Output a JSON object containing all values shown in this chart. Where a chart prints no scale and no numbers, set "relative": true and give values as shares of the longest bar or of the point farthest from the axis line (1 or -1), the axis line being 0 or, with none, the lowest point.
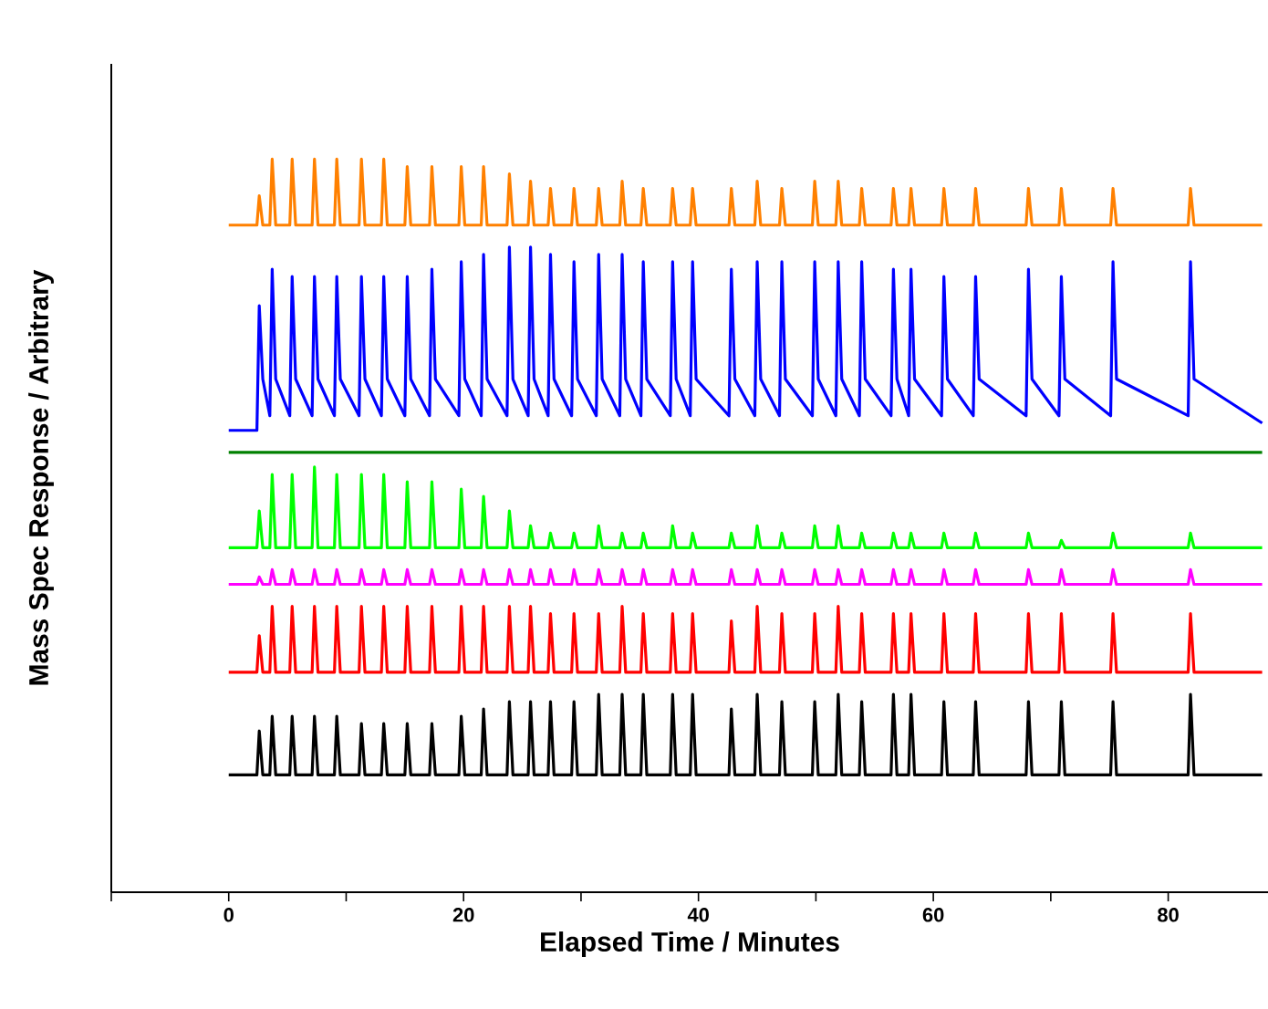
{
  "chart_data": {
    "type": "line",
    "xlabel": "Elapsed Time / Minutes",
    "ylabel": "Mass Spec Response / Arbitrary",
    "relative": true,
    "xlim": [
      -10,
      88.5
    ],
    "xticks": [
      {
        "value": -10,
        "label": null
      },
      0,
      {
        "value": 10,
        "label": null
      },
      20,
      {
        "value": 30,
        "label": null
      },
      40,
      {
        "value": 50,
        "label": null
      },
      60,
      {
        "value": 70,
        "label": null
      },
      80
    ],
    "x": [
      0,
      2.4,
      2.6,
      2.9,
      3.5,
      3.7,
      4.0,
      5.2,
      5.4,
      5.7,
      7.1,
      7.3,
      7.6,
      9.0,
      9.2,
      9.5,
      11.1,
      11.3,
      11.6,
      13.0,
      13.2,
      13.5,
      15.0,
      15.2,
      15.5,
      17.1,
      17.3,
      17.6,
      19.6,
      19.8,
      20.1,
      21.5,
      21.7,
      22.0,
      23.7,
      23.9,
      24.2,
      25.5,
      25.7,
      26.0,
      27.2,
      27.4,
      27.7,
      29.2,
      29.4,
      29.7,
      31.3,
      31.5,
      31.8,
      33.3,
      33.5,
      33.8,
      35.1,
      35.3,
      35.6,
      37.6,
      37.8,
      38.1,
      39.3,
      39.5,
      39.8,
      42.6,
      42.8,
      43.1,
      44.8,
      45.0,
      45.3,
      46.9,
      47.1,
      47.4,
      49.7,
      49.9,
      50.2,
      51.7,
      51.9,
      52.2,
      53.7,
      53.9,
      54.2,
      56.4,
      56.6,
      56.9,
      57.9,
      58.1,
      58.4,
      60.7,
      60.9,
      61.2,
      63.4,
      63.6,
      63.9,
      67.9,
      68.1,
      68.4,
      70.7,
      70.9,
      71.2,
      75.1,
      75.3,
      75.6,
      81.7,
      81.9,
      82.2,
      88
    ],
    "series": [
      {
        "color": "#ff8000",
        "values": [
          0.91,
          0.91,
          0.95,
          0.91,
          0.91,
          1.0,
          0.91,
          0.91,
          1.0,
          0.91,
          0.91,
          1.0,
          0.91,
          0.91,
          1.0,
          0.91,
          0.91,
          1.0,
          0.91,
          0.91,
          1.0,
          0.91,
          0.91,
          0.99,
          0.91,
          0.91,
          0.99,
          0.91,
          0.91,
          0.99,
          0.91,
          0.91,
          0.99,
          0.91,
          0.91,
          0.98,
          0.91,
          0.91,
          0.97,
          0.91,
          0.91,
          0.96,
          0.91,
          0.91,
          0.96,
          0.91,
          0.91,
          0.96,
          0.91,
          0.91,
          0.97,
          0.91,
          0.91,
          0.96,
          0.91,
          0.91,
          0.96,
          0.91,
          0.91,
          0.96,
          0.91,
          0.91,
          0.96,
          0.91,
          0.91,
          0.97,
          0.91,
          0.91,
          0.96,
          0.91,
          0.91,
          0.97,
          0.91,
          0.91,
          0.97,
          0.91,
          0.91,
          0.96,
          0.91,
          0.91,
          0.96,
          0.91,
          0.91,
          0.96,
          0.91,
          0.91,
          0.96,
          0.91,
          0.91,
          0.96,
          0.91,
          0.91,
          0.96,
          0.91,
          0.91,
          0.96,
          0.91,
          0.91,
          0.96,
          0.91,
          0.91,
          0.96,
          0.91,
          0.91
        ]
      },
      {
        "color": "#0000ff",
        "values": [
          0.63,
          0.63,
          0.8,
          0.7,
          0.65,
          0.85,
          0.7,
          0.65,
          0.84,
          0.7,
          0.65,
          0.84,
          0.7,
          0.65,
          0.84,
          0.7,
          0.65,
          0.84,
          0.7,
          0.65,
          0.84,
          0.7,
          0.65,
          0.84,
          0.7,
          0.65,
          0.85,
          0.7,
          0.65,
          0.86,
          0.7,
          0.65,
          0.87,
          0.7,
          0.65,
          0.88,
          0.7,
          0.65,
          0.88,
          0.7,
          0.65,
          0.87,
          0.7,
          0.65,
          0.86,
          0.7,
          0.65,
          0.87,
          0.7,
          0.65,
          0.87,
          0.7,
          0.65,
          0.86,
          0.7,
          0.65,
          0.86,
          0.7,
          0.65,
          0.86,
          0.7,
          0.65,
          0.85,
          0.7,
          0.65,
          0.86,
          0.7,
          0.65,
          0.86,
          0.7,
          0.65,
          0.86,
          0.7,
          0.65,
          0.86,
          0.7,
          0.65,
          0.86,
          0.7,
          0.65,
          0.85,
          0.7,
          0.65,
          0.85,
          0.7,
          0.65,
          0.84,
          0.7,
          0.65,
          0.84,
          0.7,
          0.65,
          0.85,
          0.7,
          0.65,
          0.84,
          0.7,
          0.65,
          0.86,
          0.7,
          0.65,
          0.86,
          0.7,
          0.64
        ]
      },
      {
        "color": "#008000",
        "x": [
          0,
          88
        ],
        "values": [
          0.6,
          0.6
        ]
      },
      {
        "color": "#00ff00",
        "values": [
          0.47,
          0.47,
          0.52,
          0.47,
          0.47,
          0.57,
          0.47,
          0.47,
          0.57,
          0.47,
          0.47,
          0.58,
          0.47,
          0.47,
          0.57,
          0.47,
          0.47,
          0.57,
          0.47,
          0.47,
          0.57,
          0.47,
          0.47,
          0.56,
          0.47,
          0.47,
          0.56,
          0.47,
          0.47,
          0.55,
          0.47,
          0.47,
          0.54,
          0.47,
          0.47,
          0.52,
          0.47,
          0.47,
          0.5,
          0.47,
          0.47,
          0.49,
          0.47,
          0.47,
          0.49,
          0.47,
          0.47,
          0.5,
          0.47,
          0.47,
          0.49,
          0.47,
          0.47,
          0.49,
          0.47,
          0.47,
          0.5,
          0.47,
          0.47,
          0.49,
          0.47,
          0.47,
          0.49,
          0.47,
          0.47,
          0.5,
          0.47,
          0.47,
          0.49,
          0.47,
          0.47,
          0.5,
          0.47,
          0.47,
          0.5,
          0.47,
          0.47,
          0.49,
          0.47,
          0.47,
          0.49,
          0.47,
          0.47,
          0.49,
          0.47,
          0.47,
          0.49,
          0.47,
          0.47,
          0.49,
          0.47,
          0.47,
          0.49,
          0.47,
          0.47,
          0.48,
          0.47,
          0.47,
          0.49,
          0.47,
          0.47,
          0.49,
          0.47,
          0.47
        ]
      },
      {
        "color": "#ff00ff",
        "values": [
          0.42,
          0.42,
          0.43,
          0.42,
          0.42,
          0.44,
          0.42,
          0.42,
          0.44,
          0.42,
          0.42,
          0.44,
          0.42,
          0.42,
          0.44,
          0.42,
          0.42,
          0.44,
          0.42,
          0.42,
          0.44,
          0.42,
          0.42,
          0.44,
          0.42,
          0.42,
          0.44,
          0.42,
          0.42,
          0.44,
          0.42,
          0.42,
          0.44,
          0.42,
          0.42,
          0.44,
          0.42,
          0.42,
          0.44,
          0.42,
          0.42,
          0.44,
          0.42,
          0.42,
          0.44,
          0.42,
          0.42,
          0.44,
          0.42,
          0.42,
          0.44,
          0.42,
          0.42,
          0.44,
          0.42,
          0.42,
          0.44,
          0.42,
          0.42,
          0.44,
          0.42,
          0.42,
          0.44,
          0.42,
          0.42,
          0.44,
          0.42,
          0.42,
          0.44,
          0.42,
          0.42,
          0.44,
          0.42,
          0.42,
          0.44,
          0.42,
          0.42,
          0.44,
          0.42,
          0.42,
          0.44,
          0.42,
          0.42,
          0.44,
          0.42,
          0.42,
          0.44,
          0.42,
          0.42,
          0.44,
          0.42,
          0.42,
          0.44,
          0.42,
          0.42,
          0.44,
          0.42,
          0.42,
          0.44,
          0.42,
          0.42,
          0.44,
          0.42,
          0.42
        ]
      },
      {
        "color": "#ff0000",
        "values": [
          0.3,
          0.3,
          0.35,
          0.3,
          0.3,
          0.39,
          0.3,
          0.3,
          0.39,
          0.3,
          0.3,
          0.39,
          0.3,
          0.3,
          0.39,
          0.3,
          0.3,
          0.39,
          0.3,
          0.3,
          0.39,
          0.3,
          0.3,
          0.39,
          0.3,
          0.3,
          0.39,
          0.3,
          0.3,
          0.39,
          0.3,
          0.3,
          0.39,
          0.3,
          0.3,
          0.39,
          0.3,
          0.3,
          0.39,
          0.3,
          0.3,
          0.38,
          0.3,
          0.3,
          0.38,
          0.3,
          0.3,
          0.38,
          0.3,
          0.3,
          0.39,
          0.3,
          0.3,
          0.38,
          0.3,
          0.3,
          0.38,
          0.3,
          0.3,
          0.38,
          0.3,
          0.3,
          0.37,
          0.3,
          0.3,
          0.39,
          0.3,
          0.3,
          0.38,
          0.3,
          0.3,
          0.38,
          0.3,
          0.3,
          0.39,
          0.3,
          0.3,
          0.38,
          0.3,
          0.3,
          0.38,
          0.3,
          0.3,
          0.38,
          0.3,
          0.3,
          0.38,
          0.3,
          0.3,
          0.38,
          0.3,
          0.3,
          0.38,
          0.3,
          0.3,
          0.38,
          0.3,
          0.3,
          0.38,
          0.3,
          0.3,
          0.38,
          0.3,
          0.3
        ]
      },
      {
        "color": "#000000",
        "values": [
          0.16,
          0.16,
          0.22,
          0.16,
          0.16,
          0.24,
          0.16,
          0.16,
          0.24,
          0.16,
          0.16,
          0.24,
          0.16,
          0.16,
          0.24,
          0.16,
          0.16,
          0.23,
          0.16,
          0.16,
          0.23,
          0.16,
          0.16,
          0.23,
          0.16,
          0.16,
          0.23,
          0.16,
          0.16,
          0.24,
          0.16,
          0.16,
          0.25,
          0.16,
          0.16,
          0.26,
          0.16,
          0.16,
          0.26,
          0.16,
          0.16,
          0.26,
          0.16,
          0.16,
          0.26,
          0.16,
          0.16,
          0.27,
          0.16,
          0.16,
          0.27,
          0.16,
          0.16,
          0.27,
          0.16,
          0.16,
          0.27,
          0.16,
          0.16,
          0.27,
          0.16,
          0.16,
          0.25,
          0.16,
          0.16,
          0.27,
          0.16,
          0.16,
          0.26,
          0.16,
          0.16,
          0.26,
          0.16,
          0.16,
          0.27,
          0.16,
          0.16,
          0.26,
          0.16,
          0.16,
          0.27,
          0.16,
          0.16,
          0.27,
          0.16,
          0.16,
          0.26,
          0.16,
          0.16,
          0.26,
          0.16,
          0.16,
          0.26,
          0.16,
          0.16,
          0.26,
          0.16,
          0.16,
          0.26,
          0.16,
          0.16,
          0.27,
          0.16,
          0.16
        ]
      }
    ]
  }
}
